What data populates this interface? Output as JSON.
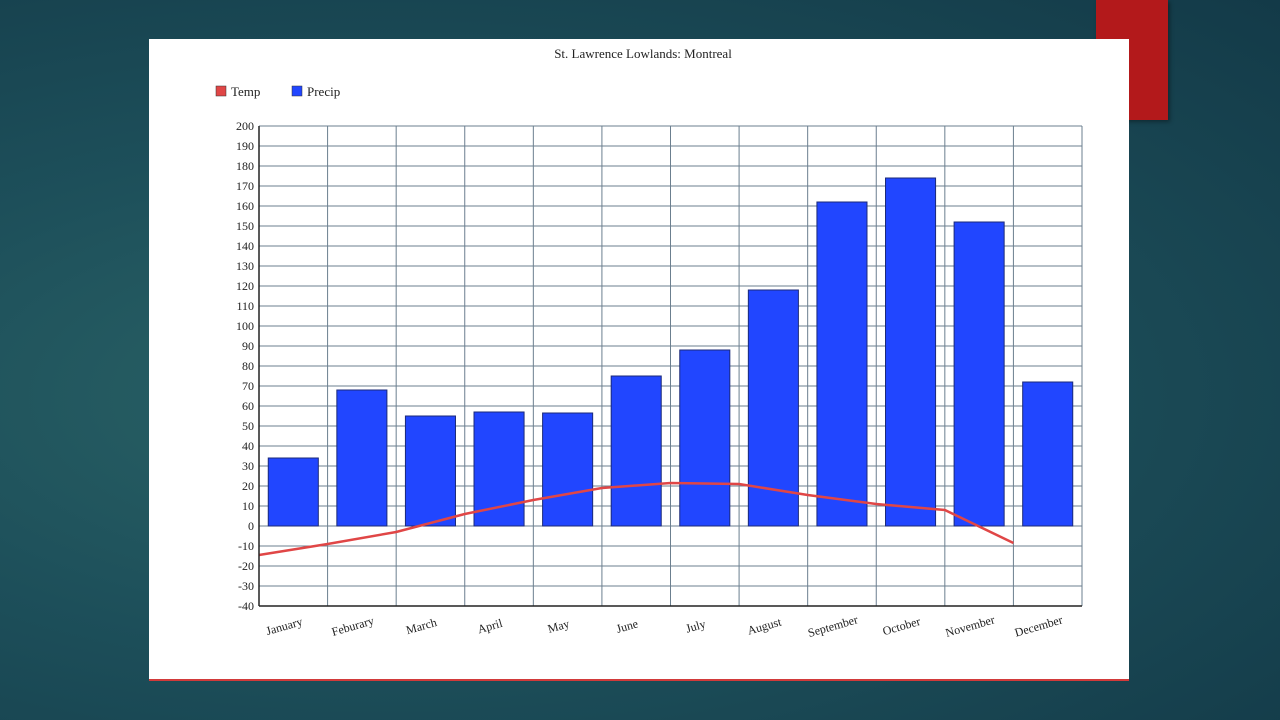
{
  "colors": {
    "temp": "#e04646",
    "precip": "#2146ff",
    "bar_stroke": "#1b2a7a",
    "accent": "#b3191b"
  },
  "chart_data": {
    "type": "bar",
    "title": "St. Lawrence Lowlands: Montreal",
    "legend_position": "top-left",
    "grid": true,
    "ylim": [
      -40,
      200
    ],
    "ytick_step": 10,
    "categories": [
      "January",
      "Feburary",
      "March",
      "April",
      "May",
      "June",
      "July",
      "August",
      "September",
      "October",
      "November",
      "December"
    ],
    "series": [
      {
        "name": "Temp",
        "kind": "line",
        "values": [
          -14.5,
          -9,
          -3,
          6,
          13,
          19,
          21.5,
          21,
          15.5,
          11,
          8,
          -8.5
        ]
      },
      {
        "name": "Precip",
        "kind": "bar",
        "values": [
          34,
          68,
          55,
          57,
          56.5,
          75,
          88,
          118,
          162,
          174,
          152,
          72
        ]
      }
    ]
  }
}
